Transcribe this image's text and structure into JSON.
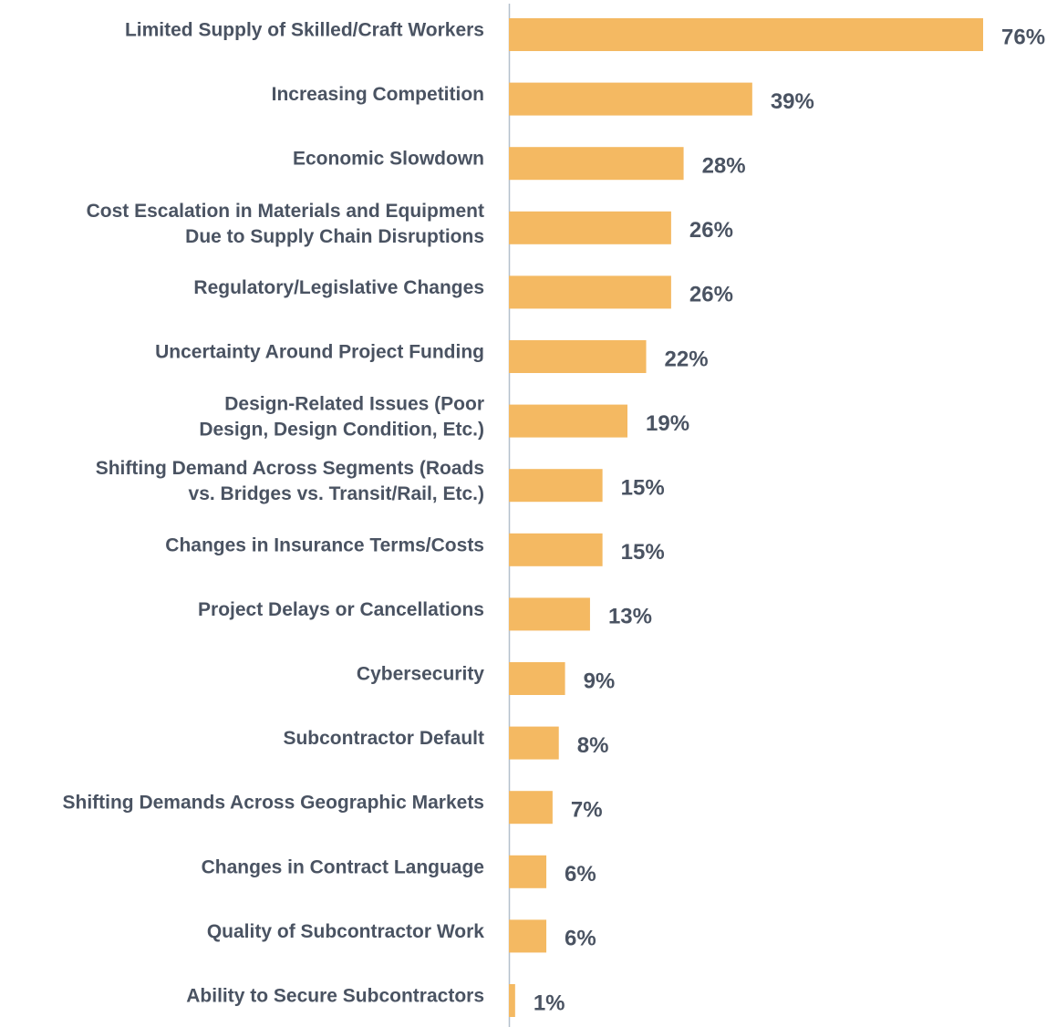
{
  "chart_data": {
    "type": "barh",
    "categories": [
      "Limited Supply of Skilled/Craft Workers",
      "Increasing Competition",
      "Economic Slowdown",
      "Cost Escalation in Materials and Equipment\nDue to Supply Chain Disruptions",
      "Regulatory/Legislative Changes",
      "Uncertainty Around Project Funding",
      "Design-Related Issues (Poor\nDesign, Design Condition, Etc.)",
      "Shifting Demand Across Segments (Roads\nvs. Bridges vs. Transit/Rail, Etc.)",
      "Changes in Insurance Terms/Costs",
      "Project Delays or Cancellations",
      "Cybersecurity",
      "Subcontractor Default",
      "Shifting Demands Across Geographic Markets",
      "Changes in Contract Language",
      "Quality of Subcontractor Work",
      "Ability to Secure Subcontractors"
    ],
    "values": [
      76,
      39,
      28,
      26,
      26,
      22,
      19,
      15,
      15,
      13,
      9,
      8,
      7,
      6,
      6,
      1
    ],
    "value_labels": [
      "76%",
      "39%",
      "28%",
      "26%",
      "26%",
      "22%",
      "19%",
      "15%",
      "15%",
      "13%",
      "9%",
      "8%",
      "7%",
      "6%",
      "6%",
      "1%"
    ],
    "color": "#f4b962"
  }
}
